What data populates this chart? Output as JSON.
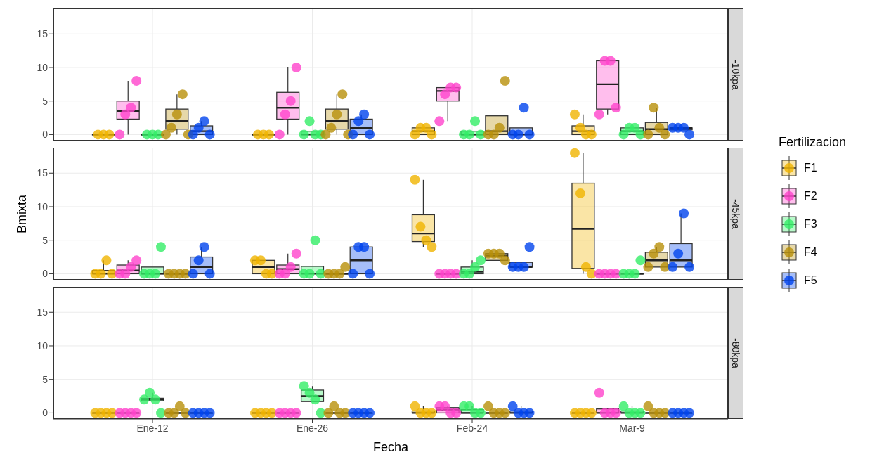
{
  "chart_data": [
    {
      "type": "box",
      "title": "-10kpa",
      "categories": [
        "Ene-12",
        "Ene-26",
        "Feb-24",
        "Mar-9"
      ],
      "ylim": [
        -0.9,
        18.8
      ],
      "yticks": [
        0,
        5,
        10,
        15
      ],
      "grid": true,
      "tick_labels": "y",
      "legend": "right",
      "legend_title": "Fertilizacion",
      "series": [
        {
          "name": "F1",
          "color": "#f0b400",
          "boxes": [
            {
              "low": 0,
              "q1": 0,
              "median": 0,
              "q3": 0,
              "high": 0
            },
            {
              "low": 0,
              "q1": 0,
              "median": 0,
              "q3": 0,
              "high": 0
            },
            {
              "low": 0,
              "q1": 0,
              "median": 0.5,
              "q3": 1,
              "high": 1
            },
            {
              "low": 0,
              "q1": 0,
              "median": 0.5,
              "q3": 1.3,
              "high": 3
            }
          ]
        },
        {
          "name": "F2",
          "color": "#ff44cc",
          "boxes": [
            {
              "low": 0,
              "q1": 2.3,
              "median": 3.5,
              "q3": 5,
              "high": 8
            },
            {
              "low": 0,
              "q1": 2.3,
              "median": 4,
              "q3": 6.3,
              "high": 10
            },
            {
              "low": 2,
              "q1": 5,
              "median": 6.5,
              "q3": 7,
              "high": 7
            },
            {
              "low": 3,
              "q1": 3.8,
              "median": 7.5,
              "q3": 11,
              "high": 11
            }
          ]
        },
        {
          "name": "F3",
          "color": "#33ee66",
          "boxes": [
            {
              "low": 0,
              "q1": 0,
              "median": 0,
              "q3": 0,
              "high": 0
            },
            {
              "low": 0,
              "q1": 0,
              "median": 0,
              "q3": 0.5,
              "high": 0.5
            },
            {
              "low": 0,
              "q1": 0,
              "median": 0,
              "q3": 0.5,
              "high": 0.5
            },
            {
              "low": 0,
              "q1": 0,
              "median": 0.5,
              "q3": 1,
              "high": 1
            }
          ]
        },
        {
          "name": "F4",
          "color": "#b8900a",
          "boxes": [
            {
              "low": 0,
              "q1": 0.8,
              "median": 2,
              "q3": 3.8,
              "high": 6
            },
            {
              "low": 0,
              "q1": 0.8,
              "median": 2,
              "q3": 3.8,
              "high": 6
            },
            {
              "low": 0,
              "q1": 0,
              "median": 0.5,
              "q3": 2.8,
              "high": 2.8
            },
            {
              "low": 0,
              "q1": 0,
              "median": 0.8,
              "q3": 1.8,
              "high": 4
            }
          ]
        },
        {
          "name": "F5",
          "color": "#0044ee",
          "boxes": [
            {
              "low": 0,
              "q1": 0,
              "median": 0.5,
              "q3": 1.3,
              "high": 2
            },
            {
              "low": 0,
              "q1": 0,
              "median": 1,
              "q3": 2.3,
              "high": 3
            },
            {
              "low": 0,
              "q1": 0,
              "median": 0,
              "q3": 1,
              "high": 1
            },
            {
              "low": 0.7,
              "q1": 0.7,
              "median": 1,
              "q3": 1,
              "high": 1
            }
          ]
        },
        {
          "type": "scatter",
          "color": "#f0b400",
          "x": [
            "Ene-12",
            "Ene-12",
            "Ene-12",
            "Ene-26",
            "Ene-26",
            "Ene-26",
            "Feb-24",
            "Feb-24",
            "Feb-24",
            "Feb-24",
            "Mar-9",
            "Mar-9",
            "Mar-9",
            "Mar-9"
          ],
          "values": [
            0,
            0,
            0,
            0,
            0,
            0,
            0,
            1,
            1,
            0,
            3,
            1,
            0,
            0
          ]
        },
        {
          "type": "scatter",
          "color": "#ff44cc",
          "x": [
            "Ene-12",
            "Ene-12",
            "Ene-12",
            "Ene-12",
            "Ene-26",
            "Ene-26",
            "Ene-26",
            "Ene-26",
            "Feb-24",
            "Feb-24",
            "Feb-24",
            "Feb-24",
            "Mar-9",
            "Mar-9",
            "Mar-9",
            "Mar-9"
          ],
          "values": [
            0,
            3,
            4,
            8,
            0,
            3,
            5,
            10,
            2,
            6,
            7,
            7,
            3,
            11,
            11,
            4
          ]
        },
        {
          "type": "scatter",
          "color": "#33ee66",
          "x": [
            "Ene-12",
            "Ene-12",
            "Ene-12",
            "Ene-26",
            "Ene-26",
            "Ene-26",
            "Ene-26",
            "Feb-24",
            "Feb-24",
            "Feb-24",
            "Feb-24",
            "Mar-9",
            "Mar-9",
            "Mar-9",
            "Mar-9"
          ],
          "values": [
            0,
            0,
            0,
            0,
            2,
            0,
            0,
            0,
            0,
            2,
            0,
            0,
            1,
            1,
            0
          ]
        },
        {
          "type": "scatter",
          "color": "#b8900a",
          "x": [
            "Ene-12",
            "Ene-12",
            "Ene-12",
            "Ene-12",
            "Ene-12",
            "Ene-26",
            "Ene-26",
            "Ene-26",
            "Ene-26",
            "Ene-26",
            "Feb-24",
            "Feb-24",
            "Feb-24",
            "Feb-24",
            "Mar-9",
            "Mar-9",
            "Mar-9",
            "Mar-9"
          ],
          "values": [
            0,
            1,
            3,
            6,
            0,
            0,
            1,
            3,
            6,
            0,
            0,
            0,
            1,
            8,
            0,
            4,
            1,
            0
          ]
        },
        {
          "type": "scatter",
          "color": "#0044ee",
          "x": [
            "Ene-12",
            "Ene-12",
            "Ene-12",
            "Ene-12",
            "Ene-26",
            "Ene-26",
            "Ene-26",
            "Ene-26",
            "Feb-24",
            "Feb-24",
            "Feb-24",
            "Feb-24",
            "Mar-9",
            "Mar-9",
            "Mar-9",
            "Mar-9"
          ],
          "values": [
            0,
            1,
            2,
            0,
            0,
            2,
            3,
            0,
            0,
            0,
            4,
            0,
            1,
            1,
            1,
            0
          ]
        }
      ]
    },
    {
      "type": "box",
      "title": "-45kpa",
      "ylabel": "Bmixta",
      "categories": [
        "Ene-12",
        "Ene-26",
        "Feb-24",
        "Mar-9"
      ],
      "ylim": [
        -0.9,
        18.8
      ],
      "yticks": [
        0,
        5,
        10,
        15
      ],
      "grid": true,
      "tick_labels": "y",
      "series": [
        {
          "color": "#f0b400",
          "boxes": [
            {
              "low": 0,
              "q1": 0,
              "median": 0,
              "q3": 0.5,
              "high": 2
            },
            {
              "low": 0,
              "q1": 0,
              "median": 1,
              "q3": 2,
              "high": 2
            },
            {
              "low": 4,
              "q1": 4.8,
              "median": 6,
              "q3": 8.8,
              "high": 14
            },
            {
              "low": 0,
              "q1": 0.8,
              "median": 6.7,
              "q3": 13.5,
              "high": 18
            }
          ]
        },
        {
          "color": "#ff44cc",
          "boxes": [
            {
              "low": 0,
              "q1": 0,
              "median": 0.5,
              "q3": 1.3,
              "high": 2
            },
            {
              "low": 0,
              "q1": 0,
              "median": 0.7,
              "q3": 1.3,
              "high": 3
            },
            {
              "low": 0,
              "q1": 0,
              "median": 0,
              "q3": 0,
              "high": 0
            },
            {
              "low": 0,
              "q1": 0,
              "median": 0,
              "q3": 0,
              "high": 0
            }
          ]
        },
        {
          "color": "#33ee66",
          "boxes": [
            {
              "low": 0,
              "q1": 0,
              "median": 0,
              "q3": 1,
              "high": 1
            },
            {
              "low": 0,
              "q1": 0,
              "median": 0,
              "q3": 1.1,
              "high": 1.1
            },
            {
              "low": 0,
              "q1": 0,
              "median": 0.3,
              "q3": 1,
              "high": 2
            },
            {
              "low": 0,
              "q1": 0,
              "median": 0,
              "q3": 0,
              "high": 0
            }
          ]
        },
        {
          "color": "#b8900a",
          "boxes": [
            {
              "low": 0,
              "q1": 0,
              "median": 0,
              "q3": 0,
              "high": 0
            },
            {
              "low": 0,
              "q1": 0,
              "median": 0,
              "q3": 0,
              "high": 0
            },
            {
              "low": 2,
              "q1": 2,
              "median": 2.7,
              "q3": 3,
              "high": 3
            },
            {
              "low": 1,
              "q1": 1,
              "median": 2,
              "q3": 3.2,
              "high": 4
            }
          ]
        },
        {
          "color": "#0044ee",
          "boxes": [
            {
              "low": 0,
              "q1": 0,
              "median": 1,
              "q3": 2.5,
              "high": 4
            },
            {
              "low": 0,
              "q1": 0,
              "median": 2,
              "q3": 4,
              "high": 4
            },
            {
              "low": 1,
              "q1": 1,
              "median": 1,
              "q3": 1.7,
              "high": 1.7
            },
            {
              "low": 1,
              "q1": 1,
              "median": 2,
              "q3": 4.5,
              "high": 9
            }
          ]
        },
        {
          "type": "scatter",
          "color": "#f0b400",
          "x": [
            "Ene-12",
            "Ene-12",
            "Ene-12",
            "Ene-12",
            "Ene-26",
            "Ene-26",
            "Ene-26",
            "Ene-26",
            "Feb-24",
            "Feb-24",
            "Feb-24",
            "Feb-24",
            "Mar-9",
            "Mar-9",
            "Mar-9",
            "Mar-9"
          ],
          "values": [
            0,
            0,
            2,
            0,
            2,
            2,
            0,
            0,
            14,
            7,
            5,
            4,
            18,
            12,
            1,
            0
          ]
        },
        {
          "type": "scatter",
          "color": "#ff44cc",
          "x": [
            "Ene-12",
            "Ene-12",
            "Ene-12",
            "Ene-12",
            "Ene-26",
            "Ene-26",
            "Ene-26",
            "Ene-26",
            "Feb-24",
            "Feb-24",
            "Feb-24",
            "Feb-24",
            "Mar-9",
            "Mar-9",
            "Mar-9",
            "Mar-9"
          ],
          "values": [
            0,
            0,
            1,
            2,
            0,
            0,
            1,
            3,
            0,
            0,
            0,
            0,
            0,
            0,
            0,
            0
          ]
        },
        {
          "type": "scatter",
          "color": "#33ee66",
          "x": [
            "Ene-12",
            "Ene-12",
            "Ene-12",
            "Ene-12",
            "Ene-26",
            "Ene-26",
            "Ene-26",
            "Ene-26",
            "Feb-24",
            "Feb-24",
            "Feb-24",
            "Feb-24",
            "Mar-9",
            "Mar-9",
            "Mar-9",
            "Mar-9"
          ],
          "values": [
            0,
            0,
            0,
            4,
            0,
            0,
            5,
            0,
            0,
            0,
            1,
            2,
            0,
            0,
            0,
            2
          ]
        },
        {
          "type": "scatter",
          "color": "#b8900a",
          "x": [
            "Ene-12",
            "Ene-12",
            "Ene-12",
            "Ene-12",
            "Ene-26",
            "Ene-26",
            "Ene-26",
            "Ene-26",
            "Feb-24",
            "Feb-24",
            "Feb-24",
            "Feb-24",
            "Mar-9",
            "Mar-9",
            "Mar-9",
            "Mar-9"
          ],
          "values": [
            0,
            0,
            0,
            0,
            0,
            0,
            0,
            1,
            3,
            3,
            3,
            2,
            1,
            3,
            4,
            1
          ]
        },
        {
          "type": "scatter",
          "color": "#0044ee",
          "x": [
            "Ene-12",
            "Ene-12",
            "Ene-12",
            "Ene-12",
            "Ene-26",
            "Ene-26",
            "Ene-26",
            "Ene-26",
            "Feb-24",
            "Feb-24",
            "Feb-24",
            "Feb-24",
            "Mar-9",
            "Mar-9",
            "Mar-9",
            "Mar-9"
          ],
          "values": [
            0,
            2,
            4,
            0,
            0,
            4,
            4,
            0,
            1,
            1,
            1,
            4,
            1,
            3,
            9,
            1
          ]
        }
      ]
    },
    {
      "type": "box",
      "title": "-80kpa",
      "xlabel": "Fecha",
      "categories": [
        "Ene-12",
        "Ene-26",
        "Feb-24",
        "Mar-9"
      ],
      "ylim": [
        -0.9,
        18.8
      ],
      "yticks": [
        0,
        5,
        10,
        15
      ],
      "grid": true,
      "series": [
        {
          "color": "#f0b400",
          "boxes": [
            {
              "low": 0,
              "q1": 0,
              "median": 0,
              "q3": 0,
              "high": 0
            },
            {
              "low": 0,
              "q1": 0,
              "median": 0,
              "q3": 0,
              "high": 0
            },
            {
              "low": 0,
              "q1": 0,
              "median": 0,
              "q3": 0.3,
              "high": 1
            },
            {
              "low": 0,
              "q1": 0,
              "median": 0,
              "q3": 0,
              "high": 0
            }
          ]
        },
        {
          "color": "#ff44cc",
          "boxes": [
            {
              "low": 0,
              "q1": 0,
              "median": 0,
              "q3": 0,
              "high": 0
            },
            {
              "low": 0,
              "q1": 0,
              "median": 0,
              "q3": 0,
              "high": 0
            },
            {
              "low": 0,
              "q1": 0,
              "median": 0.5,
              "q3": 0.8,
              "high": 1
            },
            {
              "low": 0,
              "q1": 0,
              "median": 0,
              "q3": 0.6,
              "high": 0.6
            }
          ]
        },
        {
          "color": "#33ee66",
          "boxes": [
            {
              "low": 1.8,
              "q1": 1.8,
              "median": 2,
              "q3": 2.2,
              "high": 3
            },
            {
              "low": 1.7,
              "q1": 1.7,
              "median": 2.5,
              "q3": 3.4,
              "high": 4
            },
            {
              "low": 0,
              "q1": 0,
              "median": 0,
              "q3": 0.5,
              "high": 1
            },
            {
              "low": 0,
              "q1": 0,
              "median": 0,
              "q3": 0.3,
              "high": 1
            }
          ]
        },
        {
          "color": "#b8900a",
          "boxes": [
            {
              "low": 0,
              "q1": 0,
              "median": 0,
              "q3": 0,
              "high": 0
            },
            {
              "low": 0,
              "q1": 0,
              "median": 0,
              "q3": 0,
              "high": 0
            },
            {
              "low": 0,
              "q1": 0,
              "median": 0,
              "q3": 0,
              "high": 0
            },
            {
              "low": 0,
              "q1": 0,
              "median": 0,
              "q3": 0,
              "high": 0
            }
          ]
        },
        {
          "color": "#0044ee",
          "boxes": [
            {
              "low": 0,
              "q1": 0,
              "median": 0,
              "q3": 0,
              "high": 0
            },
            {
              "low": 0,
              "q1": 0,
              "median": 0,
              "q3": 0,
              "high": 0
            },
            {
              "low": 0,
              "q1": 0,
              "median": 0,
              "q3": 0.3,
              "high": 1
            },
            {
              "low": 0,
              "q1": 0,
              "median": 0,
              "q3": 0,
              "high": 0
            }
          ]
        },
        {
          "type": "scatter",
          "color": "#f0b400",
          "x": [
            "Ene-12",
            "Ene-12",
            "Ene-12",
            "Ene-12",
            "Ene-26",
            "Ene-26",
            "Ene-26",
            "Ene-26",
            "Feb-24",
            "Feb-24",
            "Feb-24",
            "Feb-24",
            "Mar-9",
            "Mar-9",
            "Mar-9",
            "Mar-9"
          ],
          "values": [
            0,
            0,
            0,
            0,
            0,
            0,
            0,
            0,
            1,
            0,
            0,
            0,
            0,
            0,
            0,
            0
          ]
        },
        {
          "type": "scatter",
          "color": "#ff44cc",
          "x": [
            "Ene-12",
            "Ene-12",
            "Ene-12",
            "Ene-12",
            "Ene-26",
            "Ene-26",
            "Ene-26",
            "Ene-26",
            "Feb-24",
            "Feb-24",
            "Feb-24",
            "Feb-24",
            "Mar-9",
            "Mar-9",
            "Mar-9",
            "Mar-9"
          ],
          "values": [
            0,
            0,
            0,
            0,
            0,
            0,
            0,
            0,
            1,
            1,
            0,
            0,
            3,
            0,
            0,
            0
          ]
        },
        {
          "type": "scatter",
          "color": "#33ee66",
          "x": [
            "Ene-12",
            "Ene-12",
            "Ene-12",
            "Ene-12",
            "Ene-26",
            "Ene-26",
            "Ene-26",
            "Ene-26",
            "Feb-24",
            "Feb-24",
            "Feb-24",
            "Feb-24",
            "Mar-9",
            "Mar-9",
            "Mar-9",
            "Mar-9"
          ],
          "values": [
            2,
            3,
            2,
            0,
            4,
            3,
            2,
            0,
            1,
            1,
            0,
            0,
            1,
            0,
            0,
            0
          ]
        },
        {
          "type": "scatter",
          "color": "#b8900a",
          "x": [
            "Ene-12",
            "Ene-12",
            "Ene-12",
            "Ene-12",
            "Ene-26",
            "Ene-26",
            "Ene-26",
            "Ene-26",
            "Feb-24",
            "Feb-24",
            "Feb-24",
            "Feb-24",
            "Mar-9",
            "Mar-9",
            "Mar-9",
            "Mar-9"
          ],
          "values": [
            0,
            0,
            1,
            0,
            0,
            1,
            0,
            0,
            1,
            0,
            0,
            0,
            1,
            0,
            0,
            0
          ]
        },
        {
          "type": "scatter",
          "color": "#0044ee",
          "x": [
            "Ene-12",
            "Ene-12",
            "Ene-12",
            "Ene-12",
            "Ene-26",
            "Ene-26",
            "Ene-26",
            "Ene-26",
            "Feb-24",
            "Feb-24",
            "Feb-24",
            "Feb-24",
            "Mar-9",
            "Mar-9",
            "Mar-9",
            "Mar-9"
          ],
          "values": [
            0,
            0,
            0,
            0,
            0,
            0,
            0,
            0,
            1,
            0,
            0,
            0,
            0,
            0,
            0,
            0
          ]
        }
      ]
    }
  ]
}
